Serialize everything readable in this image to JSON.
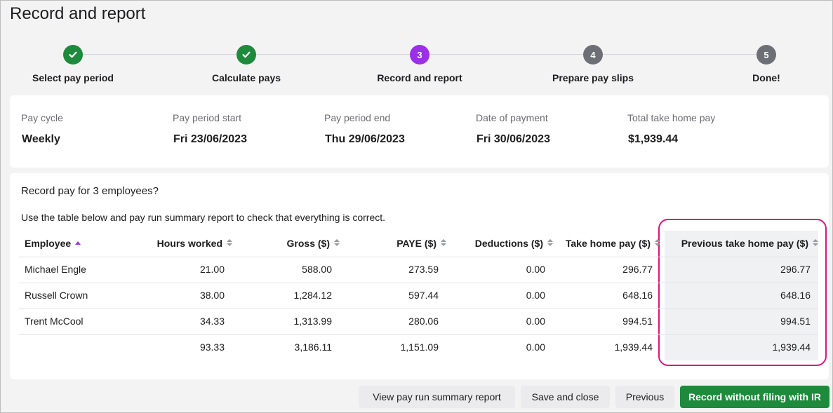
{
  "header": {
    "title": "Record and report"
  },
  "steps": [
    {
      "label": "Select pay period",
      "status": "done"
    },
    {
      "label": "Calculate pays",
      "status": "done"
    },
    {
      "number": "3",
      "label": "Record and report",
      "status": "current"
    },
    {
      "number": "4",
      "label": "Prepare pay slips",
      "status": "upcoming"
    },
    {
      "number": "5",
      "label": "Done!",
      "status": "upcoming"
    }
  ],
  "summary": [
    {
      "label": "Pay cycle",
      "value": "Weekly"
    },
    {
      "label": "Pay period start",
      "value": "Fri 23/06/2023"
    },
    {
      "label": "Pay period end",
      "value": "Thu 29/06/2023"
    },
    {
      "label": "Date of payment",
      "value": "Fri 30/06/2023"
    },
    {
      "label": "Total take home pay",
      "value": "$1,939.44"
    }
  ],
  "table": {
    "title": "Record pay for 3 employees?",
    "note": "Use the table below and pay run summary report to check that everything is correct.",
    "columns": [
      "Employee",
      "Hours worked",
      "Gross ($)",
      "PAYE ($)",
      "Deductions ($)",
      "Take home pay ($)",
      "Previous take home pay ($)"
    ],
    "rows": [
      [
        "Michael Engle",
        "21.00",
        "588.00",
        "273.59",
        "0.00",
        "296.77",
        "296.77"
      ],
      [
        "Russell Crown",
        "38.00",
        "1,284.12",
        "597.44",
        "0.00",
        "648.16",
        "648.16"
      ],
      [
        "Trent McCool",
        "34.33",
        "1,313.99",
        "280.06",
        "0.00",
        "994.51",
        "994.51"
      ]
    ],
    "totals": [
      "93.33",
      "3,186.11",
      "1,151.09",
      "0.00",
      "1,939.44",
      "1,939.44"
    ]
  },
  "buttons": [
    "View pay run summary report",
    "Save and close",
    "Previous",
    "Record without filing with IR"
  ]
}
